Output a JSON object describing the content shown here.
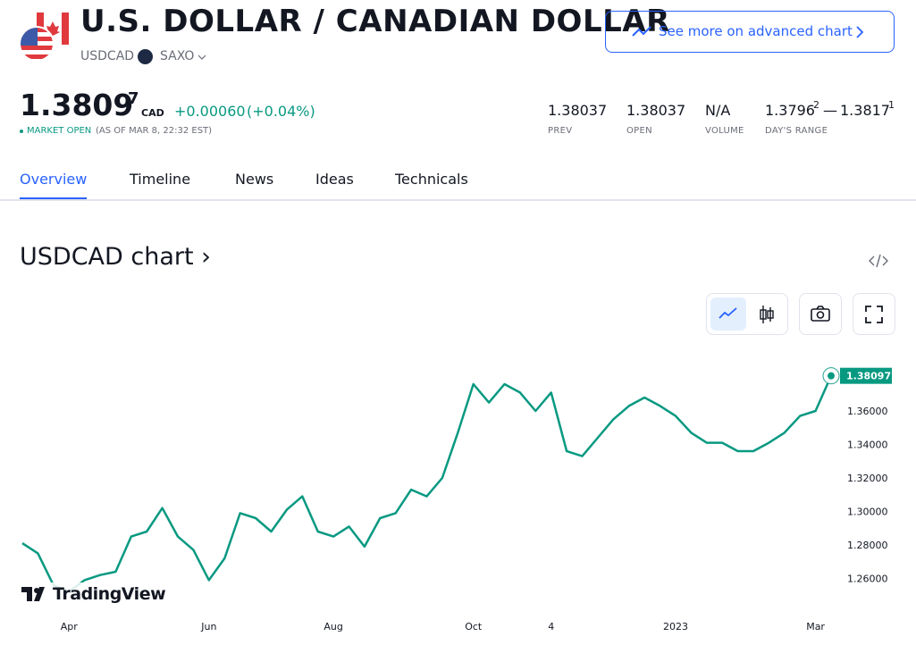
{
  "header": {
    "title": "U.S. DOLLAR / CANADIAN DOLLAR",
    "symbol": "USDCAD",
    "exchange": "SAXO",
    "button": "See more on advanced chart"
  },
  "quote": {
    "price": "1.3809",
    "price_sup": "7",
    "currency": "CAD",
    "change": "+0.00060",
    "change_pct": "(+0.04%)",
    "status": "MARKET OPEN",
    "as_of": "(AS OF MAR 8, 22:32 EST)"
  },
  "stats": [
    {
      "value": "1.38037",
      "label": "PREV"
    },
    {
      "value": "1.38037",
      "label": "OPEN"
    },
    {
      "value": "N/A",
      "label": "VOLUME"
    },
    {
      "low": "1.3796",
      "low_sup": "2",
      "sep": "—",
      "high": "1.3817",
      "high_sup": "1",
      "label": "DAY'S RANGE"
    }
  ],
  "tabs": [
    "Overview",
    "Timeline",
    "News",
    "Ideas",
    "Technicals"
  ],
  "chart_heading": "USDCAD chart ›",
  "logo": "TradingView",
  "chart_data": {
    "type": "line",
    "color": "#089981",
    "grid": false,
    "categories": [
      null,
      null,
      null,
      "Apr",
      null,
      null,
      null,
      null,
      null,
      null,
      null,
      null,
      "Jun",
      null,
      null,
      null,
      null,
      null,
      null,
      null,
      "Aug",
      null,
      null,
      null,
      null,
      null,
      null,
      null,
      null,
      "Oct",
      null,
      null,
      null,
      null,
      "4",
      null,
      null,
      null,
      null,
      null,
      null,
      null,
      "2023",
      null,
      null,
      null,
      null,
      null,
      null,
      null,
      null,
      "Mar",
      null
    ],
    "values": [
      1.281,
      1.275,
      1.256,
      1.252,
      1.259,
      1.262,
      1.264,
      1.285,
      1.288,
      1.302,
      1.285,
      1.277,
      1.259,
      1.272,
      1.299,
      1.296,
      1.288,
      1.301,
      1.309,
      1.288,
      1.285,
      1.291,
      1.279,
      1.296,
      1.299,
      1.313,
      1.309,
      1.32,
      1.347,
      1.376,
      1.365,
      1.376,
      1.371,
      1.36,
      1.371,
      1.336,
      1.333,
      1.344,
      1.355,
      1.363,
      1.368,
      1.363,
      1.357,
      1.347,
      1.341,
      1.341,
      1.336,
      1.336,
      1.341,
      1.347,
      1.357,
      1.36,
      1.38097
    ],
    "ylim": [
      1.24,
      1.392
    ],
    "yticks": [
      {
        "value": 1.26,
        "label": "1.26000"
      },
      {
        "value": 1.28,
        "label": "1.28000"
      },
      {
        "value": 1.3,
        "label": "1.30000"
      },
      {
        "value": 1.32,
        "label": "1.32000"
      },
      {
        "value": 1.34,
        "label": "1.34000"
      },
      {
        "value": 1.36,
        "label": "1.36000"
      }
    ]
  }
}
